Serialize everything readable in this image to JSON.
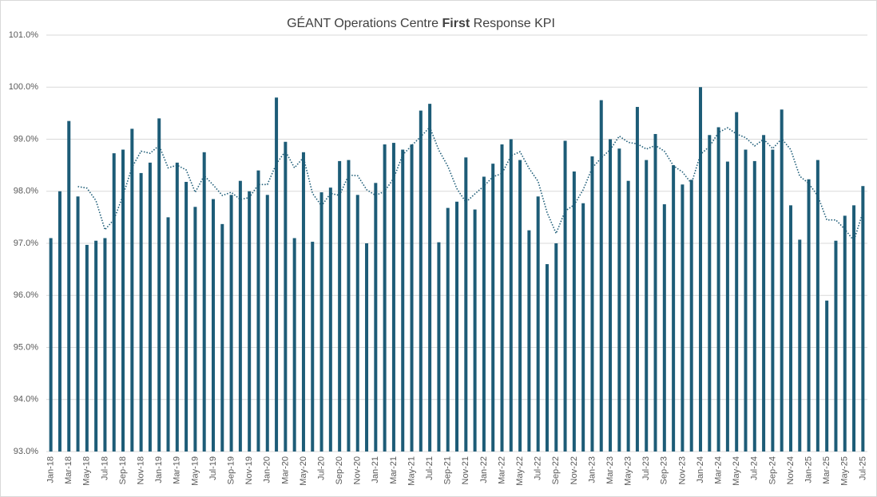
{
  "chart_data": {
    "type": "bar",
    "title": [
      "GÉANT Operations Centre ",
      "First",
      " Response KPI"
    ],
    "categories": [
      "Jan-18",
      null,
      "Mar-18",
      null,
      "May-18",
      null,
      "Jul-18",
      null,
      "Sep-18",
      null,
      "Nov-18",
      null,
      "Jan-19",
      null,
      "Mar-19",
      null,
      "May-19",
      null,
      "Jul-19",
      null,
      "Sep-19",
      null,
      "Nov-19",
      null,
      "Jan-20",
      null,
      "Mar-20",
      null,
      "May-20",
      null,
      "Jul-20",
      null,
      "Sep-20",
      null,
      "Nov-20",
      null,
      "Jan-21",
      null,
      "Mar-21",
      null,
      "May-21",
      null,
      "Jul-21",
      null,
      "Sep-21",
      null,
      "Nov-21",
      null,
      "Jan-22",
      null,
      "Mar-22",
      null,
      "May-22",
      null,
      "Jul-22",
      null,
      "Sep-22",
      null,
      "Nov-22",
      null,
      "Jan-23",
      null,
      "Mar-23",
      null,
      "May-23",
      null,
      "Jul-23",
      null,
      "Sep-23",
      null,
      "Nov-23",
      null,
      "Jan-24",
      null,
      "Mar-24",
      null,
      "May-24",
      null,
      "Jul-24",
      null,
      "Sep-24",
      null,
      "Nov-24",
      null,
      "Jan-25",
      null,
      "Mar-25",
      null,
      "May-25",
      null,
      "Jul-25"
    ],
    "series": [
      {
        "type": "bar",
        "color": "#1d5c77",
        "values": [
          97.1,
          98.0,
          99.35,
          97.9,
          96.97,
          97.05,
          97.1,
          98.73,
          98.8,
          99.2,
          98.35,
          98.55,
          99.4,
          97.5,
          98.55,
          98.18,
          97.7,
          98.75,
          97.85,
          97.37,
          97.93,
          98.2,
          98.0,
          98.4,
          97.93,
          99.8,
          98.95,
          97.1,
          98.75,
          97.03,
          97.98,
          98.07,
          98.58,
          98.6,
          97.93,
          97.0,
          98.16,
          98.9,
          98.93,
          98.8,
          98.9,
          99.55,
          99.68,
          97.02,
          97.68,
          97.8,
          98.65,
          97.65,
          98.28,
          98.53,
          98.9,
          99.0,
          98.6,
          97.25,
          97.9,
          96.6,
          97.0,
          98.97,
          98.38,
          97.77,
          98.67,
          99.75,
          99.0,
          98.82,
          98.2,
          99.62,
          98.6,
          99.1,
          97.75,
          98.5,
          98.13,
          98.22,
          100.0,
          99.08,
          99.23,
          98.57,
          99.52,
          98.8,
          98.58,
          99.08,
          98.8,
          99.57,
          97.73,
          97.07,
          98.23,
          98.6,
          95.9,
          97.05,
          97.53,
          97.73,
          98.1
        ]
      },
      {
        "type": "line",
        "style": "dotted",
        "color": "#1d5c77",
        "values": [
          null,
          null,
          null,
          98.09,
          98.06,
          97.82,
          97.26,
          97.46,
          97.92,
          98.46,
          98.77,
          98.73,
          98.88,
          98.45,
          98.5,
          98.41,
          97.98,
          98.3,
          98.12,
          97.92,
          97.98,
          97.84,
          97.88,
          98.13,
          98.13,
          98.53,
          98.77,
          98.45,
          98.65,
          97.96,
          97.72,
          97.96,
          97.92,
          98.31,
          98.3,
          98.03,
          97.92,
          98.0,
          98.25,
          98.7,
          98.88,
          99.05,
          99.23,
          98.79,
          98.48,
          98.05,
          97.79,
          97.95,
          98.1,
          98.28,
          98.34,
          98.68,
          98.76,
          98.44,
          98.19,
          97.59,
          97.19,
          97.62,
          97.74,
          98.03,
          98.45,
          98.64,
          98.8,
          99.06,
          98.94,
          98.91,
          98.81,
          98.88,
          98.77,
          98.49,
          98.37,
          98.15,
          98.71,
          98.86,
          99.13,
          99.22,
          99.1,
          99.03,
          98.87,
          99.0,
          98.82,
          99.01,
          98.8,
          98.29,
          98.15,
          97.91,
          97.45,
          97.45,
          97.27,
          97.05,
          97.6
        ]
      }
    ],
    "ylim": [
      93,
      101
    ],
    "yticks": [
      {
        "value": 93,
        "label": "93.0%"
      },
      {
        "value": 94,
        "label": "94.0%"
      },
      {
        "value": 95,
        "label": "95.0%"
      },
      {
        "value": 96,
        "label": "96.0%"
      },
      {
        "value": 97,
        "label": "97.0%"
      },
      {
        "value": 98,
        "label": "98.0%"
      },
      {
        "value": 99,
        "label": "99.0%"
      },
      {
        "value": 100,
        "label": "100.0%"
      },
      {
        "value": 101,
        "label": "101.0%"
      }
    ],
    "grid": true
  }
}
